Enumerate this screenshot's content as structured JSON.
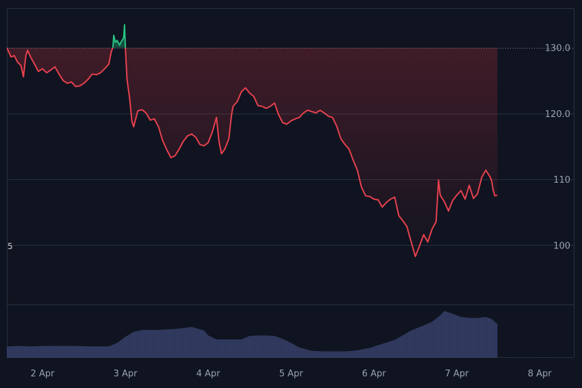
{
  "chart_data": {
    "type": "line",
    "title": "",
    "xlabel": "",
    "ylabel": "",
    "baseline": 130.0,
    "baseline_label": "130.0",
    "ylim": [
      91,
      136
    ],
    "y_ticks": [
      100,
      110,
      120,
      130
    ],
    "y_tick_labels": [
      "100",
      "110",
      "120.0",
      "130.0"
    ],
    "x_ticks": [
      1,
      2,
      3,
      4,
      5,
      6,
      7
    ],
    "x_tick_labels": [
      "2 Apr",
      "3 Apr",
      "4 Apr",
      "5 Apr",
      "6 Apr",
      "7 Apr",
      "8 Apr"
    ],
    "xlim": [
      0.57,
      7.42
    ],
    "left_edge_label": "5",
    "colors": {
      "background": "#0f1420",
      "grid": "#2b3140",
      "above_baseline": "#26c281",
      "below_baseline": "#e8414e",
      "volume": "#3a4370",
      "axis_text": "#9aa1b3"
    },
    "price": [
      [
        0.57,
        130.0
      ],
      [
        0.62,
        128.6
      ],
      [
        0.66,
        128.8
      ],
      [
        0.7,
        127.8
      ],
      [
        0.74,
        127.3
      ],
      [
        0.77,
        125.6
      ],
      [
        0.8,
        128.8
      ],
      [
        0.82,
        129.6
      ],
      [
        0.86,
        128.5
      ],
      [
        0.9,
        127.6
      ],
      [
        0.95,
        126.4
      ],
      [
        1.0,
        126.8
      ],
      [
        1.05,
        126.2
      ],
      [
        1.1,
        126.6
      ],
      [
        1.15,
        127.1
      ],
      [
        1.2,
        126.0
      ],
      [
        1.25,
        125.0
      ],
      [
        1.3,
        124.6
      ],
      [
        1.35,
        124.8
      ],
      [
        1.4,
        124.1
      ],
      [
        1.45,
        124.2
      ],
      [
        1.5,
        124.6
      ],
      [
        1.55,
        125.2
      ],
      [
        1.6,
        126.0
      ],
      [
        1.65,
        125.9
      ],
      [
        1.7,
        126.2
      ],
      [
        1.75,
        126.8
      ],
      [
        1.8,
        127.5
      ],
      [
        1.83,
        129.4
      ],
      [
        1.85,
        130.0
      ],
      [
        1.86,
        131.9
      ],
      [
        1.88,
        130.8
      ],
      [
        1.9,
        131.1
      ],
      [
        1.93,
        130.4
      ],
      [
        1.95,
        130.9
      ],
      [
        1.98,
        131.5
      ],
      [
        1.99,
        133.5
      ],
      [
        2.0,
        130.0
      ],
      [
        2.02,
        125.2
      ],
      [
        2.05,
        122.5
      ],
      [
        2.08,
        118.8
      ],
      [
        2.1,
        118.0
      ],
      [
        2.15,
        120.4
      ],
      [
        2.2,
        120.6
      ],
      [
        2.25,
        120.1
      ],
      [
        2.3,
        119.0
      ],
      [
        2.35,
        119.2
      ],
      [
        2.4,
        118.0
      ],
      [
        2.45,
        115.9
      ],
      [
        2.5,
        114.5
      ],
      [
        2.55,
        113.3
      ],
      [
        2.6,
        113.6
      ],
      [
        2.65,
        114.6
      ],
      [
        2.7,
        115.8
      ],
      [
        2.75,
        116.6
      ],
      [
        2.8,
        116.9
      ],
      [
        2.85,
        116.4
      ],
      [
        2.9,
        115.3
      ],
      [
        2.95,
        115.1
      ],
      [
        3.0,
        115.6
      ],
      [
        3.05,
        117.2
      ],
      [
        3.1,
        119.4
      ],
      [
        3.13,
        115.8
      ],
      [
        3.16,
        113.9
      ],
      [
        3.2,
        114.6
      ],
      [
        3.25,
        116.2
      ],
      [
        3.28,
        119.7
      ],
      [
        3.3,
        121.1
      ],
      [
        3.35,
        121.8
      ],
      [
        3.4,
        123.3
      ],
      [
        3.45,
        123.9
      ],
      [
        3.5,
        123.1
      ],
      [
        3.55,
        122.6
      ],
      [
        3.6,
        121.2
      ],
      [
        3.65,
        121.1
      ],
      [
        3.7,
        120.8
      ],
      [
        3.75,
        121.1
      ],
      [
        3.8,
        121.6
      ],
      [
        3.85,
        119.8
      ],
      [
        3.9,
        118.6
      ],
      [
        3.95,
        118.4
      ],
      [
        4.0,
        118.9
      ],
      [
        4.05,
        119.2
      ],
      [
        4.1,
        119.4
      ],
      [
        4.15,
        120.1
      ],
      [
        4.2,
        120.5
      ],
      [
        4.25,
        120.3
      ],
      [
        4.3,
        120.1
      ],
      [
        4.35,
        120.5
      ],
      [
        4.4,
        120.1
      ],
      [
        4.45,
        119.6
      ],
      [
        4.5,
        119.4
      ],
      [
        4.55,
        118.1
      ],
      [
        4.6,
        116.2
      ],
      [
        4.65,
        115.3
      ],
      [
        4.7,
        114.6
      ],
      [
        4.75,
        112.9
      ],
      [
        4.8,
        111.4
      ],
      [
        4.85,
        108.8
      ],
      [
        4.9,
        107.5
      ],
      [
        4.95,
        107.4
      ],
      [
        5.0,
        107.0
      ],
      [
        5.05,
        106.9
      ],
      [
        5.1,
        105.8
      ],
      [
        5.15,
        106.5
      ],
      [
        5.2,
        107.0
      ],
      [
        5.25,
        107.3
      ],
      [
        5.3,
        104.5
      ],
      [
        5.35,
        103.7
      ],
      [
        5.4,
        102.8
      ],
      [
        5.42,
        101.8
      ],
      [
        5.45,
        100.5
      ],
      [
        5.5,
        98.3
      ],
      [
        5.55,
        99.9
      ],
      [
        5.6,
        101.6
      ],
      [
        5.65,
        100.5
      ],
      [
        5.7,
        102.4
      ],
      [
        5.75,
        103.6
      ],
      [
        5.78,
        109.9
      ],
      [
        5.8,
        107.6
      ],
      [
        5.85,
        106.6
      ],
      [
        5.9,
        105.2
      ],
      [
        5.95,
        106.8
      ],
      [
        6.0,
        107.6
      ],
      [
        6.05,
        108.3
      ],
      [
        6.1,
        107.0
      ],
      [
        6.15,
        109.1
      ],
      [
        6.2,
        107.1
      ],
      [
        6.25,
        107.8
      ],
      [
        6.3,
        110.3
      ],
      [
        6.35,
        111.4
      ],
      [
        6.4,
        110.4
      ],
      [
        6.42,
        109.8
      ],
      [
        6.44,
        108.3
      ],
      [
        6.46,
        107.5
      ],
      [
        6.49,
        107.6
      ]
    ],
    "volume": [
      [
        0.57,
        0.23
      ],
      [
        0.7,
        0.24
      ],
      [
        0.85,
        0.23
      ],
      [
        1.0,
        0.24
      ],
      [
        1.2,
        0.24
      ],
      [
        1.4,
        0.24
      ],
      [
        1.6,
        0.23
      ],
      [
        1.8,
        0.23
      ],
      [
        1.9,
        0.3
      ],
      [
        2.0,
        0.42
      ],
      [
        2.1,
        0.52
      ],
      [
        2.2,
        0.56
      ],
      [
        2.4,
        0.56
      ],
      [
        2.6,
        0.58
      ],
      [
        2.8,
        0.62
      ],
      [
        2.95,
        0.55
      ],
      [
        3.0,
        0.45
      ],
      [
        3.1,
        0.37
      ],
      [
        3.3,
        0.37
      ],
      [
        3.4,
        0.37
      ],
      [
        3.5,
        0.44
      ],
      [
        3.65,
        0.45
      ],
      [
        3.8,
        0.44
      ],
      [
        3.9,
        0.38
      ],
      [
        4.0,
        0.3
      ],
      [
        4.1,
        0.21
      ],
      [
        4.25,
        0.14
      ],
      [
        4.4,
        0.13
      ],
      [
        4.5,
        0.13
      ],
      [
        4.65,
        0.13
      ],
      [
        4.8,
        0.15
      ],
      [
        4.95,
        0.2
      ],
      [
        5.1,
        0.28
      ],
      [
        5.25,
        0.36
      ],
      [
        5.45,
        0.55
      ],
      [
        5.6,
        0.65
      ],
      [
        5.7,
        0.72
      ],
      [
        5.8,
        0.85
      ],
      [
        5.85,
        0.94
      ],
      [
        5.92,
        0.9
      ],
      [
        6.05,
        0.82
      ],
      [
        6.15,
        0.8
      ],
      [
        6.25,
        0.8
      ],
      [
        6.35,
        0.82
      ],
      [
        6.42,
        0.78
      ],
      [
        6.49,
        0.68
      ]
    ]
  }
}
